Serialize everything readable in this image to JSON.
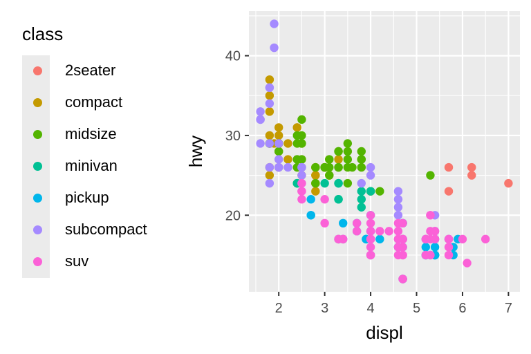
{
  "chart_data": {
    "type": "scatter",
    "xlabel": "displ",
    "ylabel": "hwy",
    "xlim": [
      1.35,
      7.25
    ],
    "ylim": [
      10.4,
      45.6
    ],
    "x_ticks": [
      2,
      3,
      4,
      5,
      6,
      7
    ],
    "y_ticks": [
      20,
      30,
      40
    ],
    "grid": true,
    "legend": {
      "title": "class",
      "position": "left",
      "entries": [
        {
          "label": "2seater",
          "color": "#F8766D"
        },
        {
          "label": "compact",
          "color": "#C49A00"
        },
        {
          "label": "midsize",
          "color": "#53B400"
        },
        {
          "label": "minivan",
          "color": "#00C094"
        },
        {
          "label": "pickup",
          "color": "#00B6EB"
        },
        {
          "label": "subcompact",
          "color": "#A58AFF"
        },
        {
          "label": "suv",
          "color": "#FB61D7"
        }
      ]
    },
    "series": [
      {
        "name": "2seater",
        "color": "#F8766D",
        "points": [
          [
            5.7,
            26
          ],
          [
            5.7,
            23
          ],
          [
            6.2,
            26
          ],
          [
            6.2,
            25
          ],
          [
            7.0,
            24
          ]
        ]
      },
      {
        "name": "compact",
        "color": "#C49A00",
        "points": [
          [
            1.8,
            29
          ],
          [
            1.8,
            29
          ],
          [
            2.0,
            31
          ],
          [
            2.0,
            30
          ],
          [
            2.8,
            26
          ],
          [
            2.8,
            26
          ],
          [
            3.1,
            27
          ],
          [
            1.8,
            26
          ],
          [
            1.8,
            25
          ],
          [
            2.0,
            28
          ],
          [
            2.0,
            29
          ],
          [
            2.8,
            25
          ],
          [
            2.8,
            25
          ],
          [
            3.1,
            25
          ],
          [
            3.1,
            25
          ],
          [
            2.2,
            27
          ],
          [
            2.2,
            29
          ],
          [
            2.4,
            31
          ],
          [
            2.4,
            31
          ],
          [
            3.0,
            26
          ],
          [
            3.0,
            26
          ],
          [
            3.3,
            27
          ],
          [
            1.8,
            35
          ],
          [
            1.8,
            37
          ],
          [
            1.8,
            33
          ],
          [
            2.0,
            29
          ],
          [
            2.0,
            29
          ],
          [
            2.0,
            28
          ],
          [
            2.0,
            29
          ],
          [
            2.8,
            23
          ],
          [
            1.9,
            29
          ],
          [
            2.0,
            26
          ],
          [
            2.5,
            29
          ],
          [
            2.5,
            27
          ],
          [
            2.5,
            25
          ],
          [
            1.8,
            30
          ],
          [
            2.8,
            24
          ],
          [
            2.8,
            24
          ],
          [
            2.0,
            29
          ]
        ]
      },
      {
        "name": "midsize",
        "color": "#53B400",
        "points": [
          [
            2.8,
            26
          ],
          [
            3.1,
            27
          ],
          [
            4.2,
            23
          ],
          [
            2.4,
            27
          ],
          [
            2.4,
            30
          ],
          [
            3.3,
            26
          ],
          [
            3.5,
            29
          ],
          [
            3.5,
            26
          ],
          [
            3.6,
            26
          ],
          [
            2.4,
            26
          ],
          [
            2.4,
            24
          ],
          [
            3.1,
            26
          ],
          [
            3.5,
            28
          ],
          [
            3.8,
            28
          ],
          [
            3.8,
            26
          ],
          [
            5.3,
            25
          ],
          [
            2.5,
            29
          ],
          [
            2.5,
            32
          ],
          [
            2.5,
            27
          ],
          [
            2.5,
            26
          ],
          [
            2.5,
            30
          ],
          [
            3.0,
            26
          ],
          [
            3.3,
            28
          ],
          [
            3.3,
            28
          ],
          [
            1.8,
            29
          ],
          [
            1.8,
            29
          ],
          [
            2.0,
            29
          ],
          [
            2.8,
            24
          ],
          [
            3.1,
            25
          ],
          [
            3.5,
            24
          ],
          [
            3.5,
            27
          ],
          [
            4.0,
            23
          ],
          [
            4.0,
            23
          ],
          [
            3.8,
            27
          ],
          [
            3.8,
            27
          ],
          [
            2.4,
            29
          ],
          [
            2.4,
            27
          ],
          [
            3.0,
            26
          ],
          [
            3.3,
            26
          ],
          [
            2.0,
            28
          ],
          [
            2.0,
            29
          ]
        ]
      },
      {
        "name": "minivan",
        "color": "#00C094",
        "points": [
          [
            2.4,
            24
          ],
          [
            3.0,
            24
          ],
          [
            3.3,
            22
          ],
          [
            3.3,
            22
          ],
          [
            3.3,
            24
          ],
          [
            3.3,
            24
          ],
          [
            3.3,
            17
          ],
          [
            3.8,
            22
          ],
          [
            3.8,
            21
          ],
          [
            3.8,
            23
          ],
          [
            4.0,
            23
          ]
        ]
      },
      {
        "name": "pickup",
        "color": "#00B6EB",
        "points": [
          [
            3.7,
            19
          ],
          [
            3.7,
            18
          ],
          [
            3.9,
            17
          ],
          [
            3.9,
            17
          ],
          [
            4.7,
            19
          ],
          [
            4.7,
            19
          ],
          [
            4.7,
            12
          ],
          [
            5.2,
            17
          ],
          [
            5.2,
            15
          ],
          [
            5.7,
            17
          ],
          [
            5.9,
            17
          ],
          [
            4.7,
            17
          ],
          [
            4.7,
            12
          ],
          [
            4.7,
            17
          ],
          [
            4.7,
            16
          ],
          [
            4.7,
            12
          ],
          [
            5.2,
            15
          ],
          [
            5.2,
            16
          ],
          [
            5.3,
            15
          ],
          [
            5.4,
            15
          ],
          [
            5.4,
            16
          ],
          [
            4.0,
            18
          ],
          [
            4.0,
            17
          ],
          [
            4.2,
            17
          ],
          [
            4.6,
            16
          ],
          [
            4.6,
            16
          ],
          [
            5.4,
            17
          ],
          [
            5.4,
            15
          ],
          [
            5.4,
            15
          ],
          [
            5.4,
            15
          ],
          [
            2.7,
            20
          ],
          [
            2.7,
            20
          ],
          [
            2.7,
            22
          ],
          [
            3.4,
            17
          ],
          [
            3.4,
            19
          ],
          [
            4.0,
            18
          ],
          [
            4.0,
            20
          ],
          [
            4.0,
            17
          ],
          [
            4.0,
            15
          ],
          [
            5.8,
            15
          ],
          [
            5.8,
            16
          ]
        ]
      },
      {
        "name": "subcompact",
        "color": "#A58AFF",
        "points": [
          [
            1.6,
            33
          ],
          [
            1.6,
            32
          ],
          [
            1.6,
            32
          ],
          [
            1.6,
            29
          ],
          [
            1.6,
            32
          ],
          [
            1.8,
            34
          ],
          [
            1.8,
            36
          ],
          [
            1.8,
            36
          ],
          [
            2.0,
            29
          ],
          [
            2.0,
            26
          ],
          [
            1.9,
            44
          ],
          [
            1.9,
            41
          ],
          [
            2.0,
            27
          ],
          [
            2.0,
            26
          ],
          [
            2.5,
            26
          ],
          [
            2.5,
            25
          ],
          [
            2.2,
            26
          ],
          [
            2.5,
            26
          ],
          [
            4.0,
            26
          ],
          [
            4.0,
            25
          ],
          [
            4.6,
            23
          ],
          [
            4.6,
            22
          ],
          [
            4.6,
            20
          ],
          [
            4.6,
            21
          ],
          [
            5.4,
            18
          ],
          [
            5.4,
            20
          ],
          [
            1.8,
            29
          ],
          [
            1.8,
            26
          ],
          [
            1.8,
            24
          ],
          [
            2.5,
            24
          ],
          [
            3.8,
            24
          ]
        ]
      },
      {
        "name": "suv",
        "color": "#FB61D7",
        "points": [
          [
            5.3,
            20
          ],
          [
            5.3,
            15
          ],
          [
            5.3,
            20
          ],
          [
            5.7,
            17
          ],
          [
            6.0,
            17
          ],
          [
            5.3,
            18
          ],
          [
            5.3,
            17
          ],
          [
            5.7,
            17
          ],
          [
            6.5,
            17
          ],
          [
            4.7,
            17
          ],
          [
            4.7,
            17
          ],
          [
            4.7,
            12
          ],
          [
            5.2,
            17
          ],
          [
            5.7,
            16
          ],
          [
            4.0,
            19
          ],
          [
            4.0,
            17
          ],
          [
            4.6,
            19
          ],
          [
            4.6,
            18
          ],
          [
            4.6,
            17
          ],
          [
            5.4,
            17
          ],
          [
            5.4,
            18
          ],
          [
            5.4,
            17
          ],
          [
            2.5,
            22
          ],
          [
            2.5,
            23
          ],
          [
            2.5,
            24
          ],
          [
            2.5,
            23
          ],
          [
            3.0,
            22
          ],
          [
            3.0,
            19
          ],
          [
            3.3,
            17
          ],
          [
            3.3,
            17
          ],
          [
            4.0,
            20
          ],
          [
            4.0,
            15
          ],
          [
            4.0,
            18
          ],
          [
            4.2,
            18
          ],
          [
            4.4,
            18
          ],
          [
            4.6,
            17
          ],
          [
            4.6,
            15
          ],
          [
            4.7,
            15
          ],
          [
            4.7,
            12
          ],
          [
            4.7,
            15
          ],
          [
            5.7,
            15
          ],
          [
            6.1,
            14
          ],
          [
            3.7,
            19
          ],
          [
            3.7,
            18
          ],
          [
            4.7,
            19
          ],
          [
            4.7,
            17
          ],
          [
            4.7,
            16
          ],
          [
            5.2,
            17
          ],
          [
            5.2,
            15
          ],
          [
            4.0,
            18
          ],
          [
            4.0,
            17
          ],
          [
            4.0,
            17
          ],
          [
            4.0,
            15
          ],
          [
            4.0,
            17
          ],
          [
            4.7,
            12
          ],
          [
            3.4,
            17
          ],
          [
            3.4,
            17
          ],
          [
            4.0,
            17
          ],
          [
            4.0,
            16
          ],
          [
            4.0,
            15
          ],
          [
            4.6,
            16
          ],
          [
            4.6,
            16
          ]
        ]
      }
    ]
  }
}
